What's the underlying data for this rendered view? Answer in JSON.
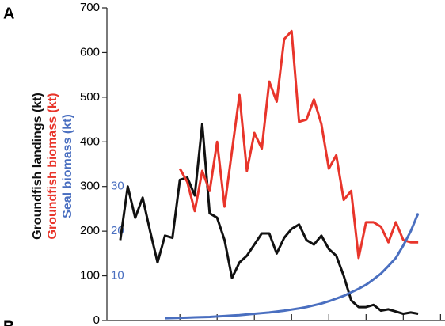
{
  "chart_data": {
    "type": "line",
    "annotations": [
      "A",
      "B"
    ],
    "x": [
      0,
      1,
      2,
      3,
      4,
      5,
      6,
      7,
      8,
      9,
      10,
      11,
      12,
      13,
      14,
      15,
      16,
      17,
      18,
      19,
      20,
      21,
      22,
      23,
      24,
      25,
      26,
      27,
      28,
      29,
      30,
      31,
      32,
      33,
      34,
      35,
      36,
      37,
      38,
      39,
      40
    ],
    "xlim": [
      -1.8,
      43.6
    ],
    "xticks": [
      8,
      13,
      18,
      23,
      28,
      33,
      38,
      43
    ],
    "ylim": [
      0,
      700
    ],
    "yticks": [
      0,
      100,
      200,
      300,
      400,
      500,
      600,
      700
    ],
    "y2lim": [
      0,
      70
    ],
    "y2ticks": [
      10,
      20,
      30
    ],
    "y2color": "#4a6fc0",
    "series": [
      {
        "name": "Groundfish landings (kt)",
        "color": "#111111",
        "values": [
          180,
          300,
          230,
          275,
          200,
          130,
          190,
          185,
          315,
          320,
          280,
          440,
          240,
          230,
          180,
          95,
          130,
          145,
          170,
          195,
          195,
          150,
          185,
          205,
          215,
          180,
          170,
          190,
          160,
          145,
          100,
          45,
          30,
          30,
          35,
          22,
          25,
          20,
          15,
          18,
          15
        ]
      },
      {
        "name": "Groundfish biomass (kt)",
        "color": "#e8352b",
        "values": [
          null,
          null,
          null,
          null,
          null,
          null,
          null,
          null,
          340,
          310,
          245,
          335,
          290,
          400,
          255,
          380,
          505,
          335,
          420,
          385,
          535,
          490,
          630,
          648,
          445,
          450,
          495,
          440,
          340,
          370,
          270,
          290,
          140,
          220,
          220,
          210,
          175,
          220,
          180,
          175,
          175
        ]
      },
      {
        "name": "Seal biomass (kt)",
        "color": "#4a6fc0",
        "axis": "y2",
        "values": [
          null,
          null,
          null,
          null,
          null,
          null,
          0.5,
          0.55,
          0.6,
          0.65,
          0.7,
          0.75,
          0.8,
          0.9,
          1.0,
          1.1,
          1.2,
          1.35,
          1.5,
          1.65,
          1.8,
          2.0,
          2.2,
          2.45,
          2.7,
          3.0,
          3.4,
          3.8,
          4.3,
          4.9,
          5.5,
          6.3,
          7.1,
          8.0,
          9.2,
          10.5,
          12.2,
          14.0,
          16.8,
          20,
          24
        ]
      }
    ]
  }
}
